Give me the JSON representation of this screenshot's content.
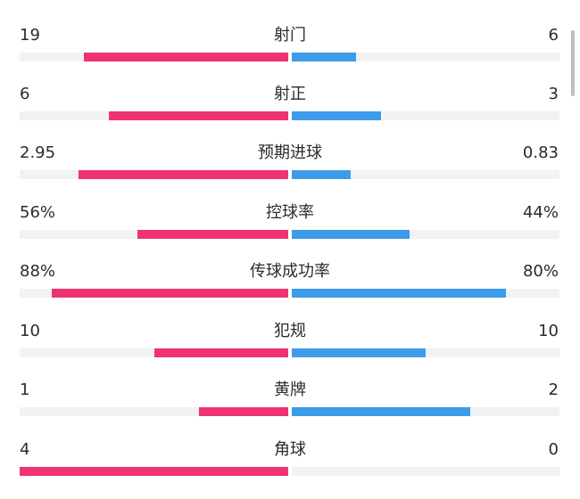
{
  "colors": {
    "home": "#ef3270",
    "away": "#3d9be9",
    "track": "#f1f2f6"
  },
  "stats": [
    {
      "name": "射门",
      "home": "19",
      "away": "6",
      "home_share": 0.76,
      "away_share": 0.24
    },
    {
      "name": "射正",
      "home": "6",
      "away": "3",
      "home_share": 0.667,
      "away_share": 0.333
    },
    {
      "name": "预期进球",
      "home": "2.95",
      "away": "0.83",
      "home_share": 0.78,
      "away_share": 0.22
    },
    {
      "name": "控球率",
      "home": "56%",
      "away": "44%",
      "home_share": 0.56,
      "away_share": 0.44
    },
    {
      "name": "传球成功率",
      "home": "88%",
      "away": "80%",
      "home_share": 0.88,
      "away_share": 0.8
    },
    {
      "name": "犯规",
      "home": "10",
      "away": "10",
      "home_share": 0.5,
      "away_share": 0.5
    },
    {
      "name": "黄牌",
      "home": "1",
      "away": "2",
      "home_share": 0.333,
      "away_share": 0.667
    },
    {
      "name": "角球",
      "home": "4",
      "away": "0",
      "home_share": 1.0,
      "away_share": 0.0
    }
  ]
}
